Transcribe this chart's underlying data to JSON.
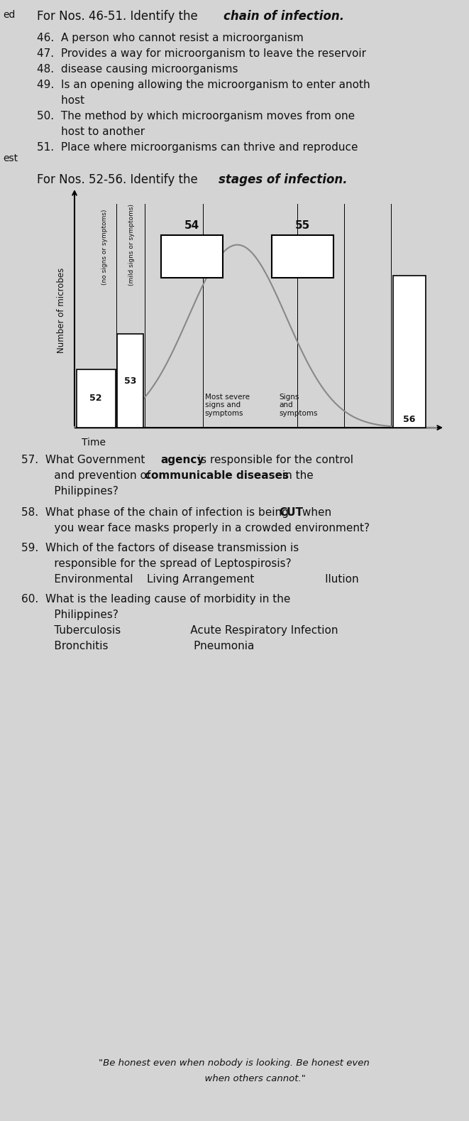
{
  "bg_color": "#d4d4d4",
  "text_color": "#111111",
  "margin_ed": "ed",
  "margin_est": "est",
  "sec1_normal": "For Nos. 46-51. Identify the ",
  "sec1_bold": "chain of infection.",
  "items": [
    "46.  A person who cannot resist a microorganism",
    "47.  Provides a way for microorganism to leave the reservoir",
    "48.  disease causing microorganisms",
    "49.  Is an opening allowing the microorganism to enter anoth",
    "       host",
    "50.  The method by which microorganism moves from one",
    "       host to another",
    "51.  Place where microorganisms can thrive and reproduce"
  ],
  "sec2_normal": "For Nos. 52-56. Identify the ",
  "sec2_bold": "stages of infection.",
  "ylabel": "Number of microbes",
  "xlabel": "Time",
  "label_no_signs": "(no signs or symptoms)",
  "label_mild_signs": "(mild signs or symptoms)",
  "label_54": "54",
  "label_55": "55",
  "label_52": "52",
  "label_53": "53",
  "label_56": "56",
  "label_most_severe": "Most severe\nsigns and\nsymptoms",
  "label_signs": "Signs\nand\nsymptoms",
  "q57_pre": "57.  What Government ",
  "q57_bold1": "agency",
  "q57_mid": " is responsible for the control",
  "q57_line2_pre": "     and prevention of ",
  "q57_bold2": "communicable diseases",
  "q57_line2_post": " in the",
  "q57_line3": "     Philippines?",
  "q58_pre": "58.  What phase of the chain of infection is being ",
  "q58_bold": "CUT",
  "q58_post": " when",
  "q58_line2": "     you wear face masks properly in a crowded environment?",
  "q59_line1": "59.  Which of the factors of disease transmission is",
  "q59_line2": "     responsible for the spread of Leptospirosis?",
  "q59_line3_pre": "     Environmental    Living Arrangement",
  "q59_line3_post": "              llution",
  "q60_line1": "60.  What is the leading cause of morbidity in the",
  "q60_line2": "     Philippines?",
  "q60_line3_col1": "     Tuberculosis",
  "q60_line3_col2": "              Acute Respiratory Infection",
  "q60_line4_col1": "     Bronchitis",
  "q60_line4_col2": "               Pneumonia",
  "footer_line1": "\"Be honest even when nobody is looking. Be honest even",
  "footer_line2": "              when others cannot.\""
}
